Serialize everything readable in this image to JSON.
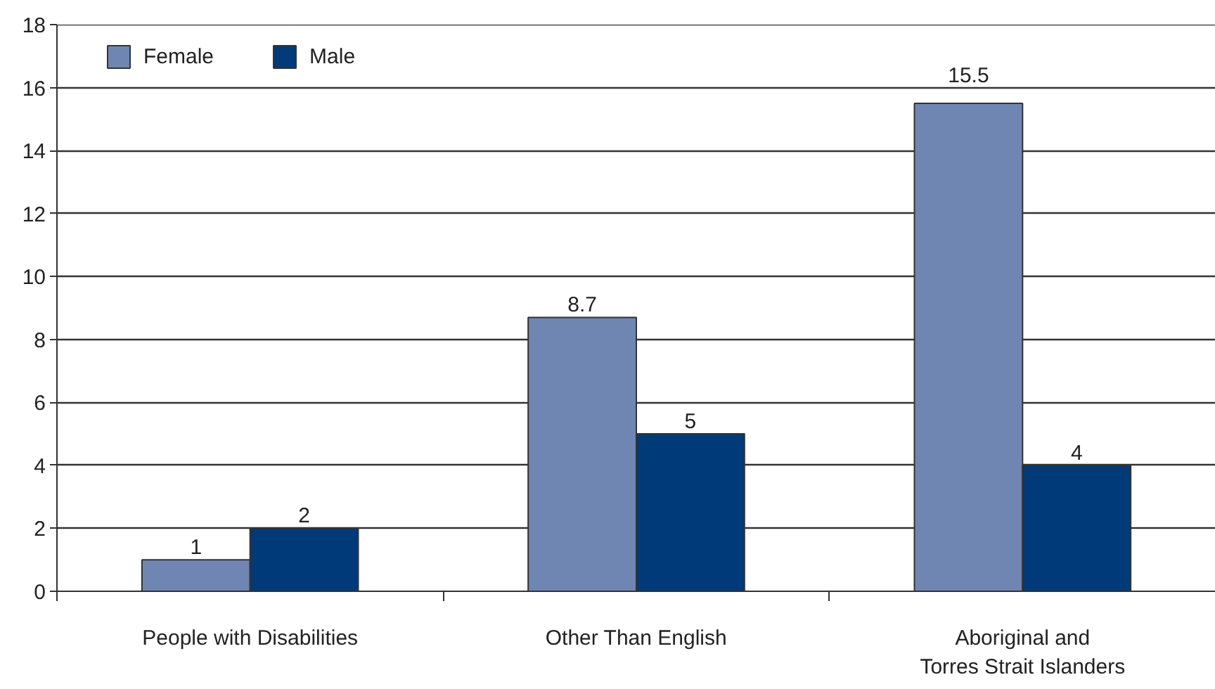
{
  "chart_data": {
    "type": "bar",
    "categories": [
      "People with Disabilities",
      "Other Than English",
      "Aboriginal and\nTorres Strait Islanders"
    ],
    "series": [
      {
        "name": "Female",
        "color": "#6f86b3",
        "values": [
          1,
          8.7,
          15.5
        ]
      },
      {
        "name": "Male",
        "color": "#003a78",
        "values": [
          2,
          5,
          4
        ]
      }
    ],
    "ylim": [
      0,
      18
    ],
    "yticks": [
      0,
      2,
      4,
      6,
      8,
      10,
      12,
      14,
      16,
      18
    ],
    "grid": "y",
    "legend": "top left",
    "data_labels": true
  }
}
